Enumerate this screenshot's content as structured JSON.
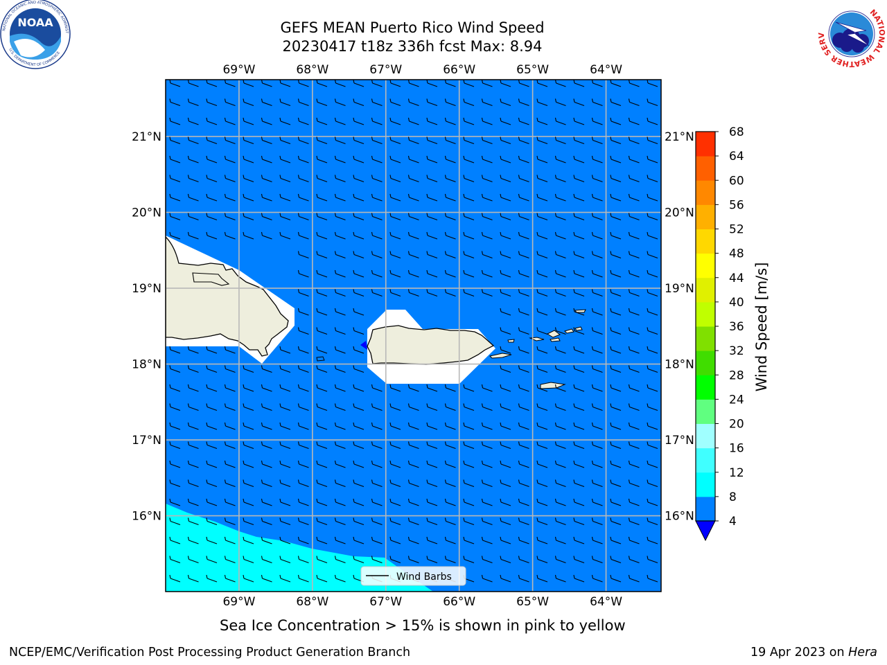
{
  "title": {
    "line1": "GEFS MEAN Puerto Rico Wind Speed",
    "line2": "20230417 t18z 336h fcst   Max: 8.94"
  },
  "logos": {
    "left": {
      "text": "NOAA",
      "ring_text": "NATIONAL OCEANIC AND ATMOSPHERIC ADMINISTRATION",
      "ring_text_bottom": "U.S. DEPARTMENT OF COMMERCE",
      "icon": "noaa-logo-icon"
    },
    "right": {
      "ring_text": "NATIONAL WEATHER SERVICE",
      "icon": "nws-logo-icon"
    }
  },
  "map": {
    "projection": "lat-lon",
    "lon_range": [
      -70.0,
      -63.25
    ],
    "lat_range": [
      15.0,
      21.75
    ],
    "lon_ticks": [
      -69,
      -68,
      -67,
      -66,
      -65,
      -64
    ],
    "lat_ticks": [
      16,
      17,
      18,
      19,
      20,
      21
    ],
    "lon_tick_labels": [
      "69°W",
      "68°W",
      "67°W",
      "66°W",
      "65°W",
      "64°W"
    ],
    "lat_tick_labels": [
      "16°N",
      "17°N",
      "18°N",
      "19°N",
      "20°N",
      "21°N"
    ],
    "grid": true,
    "ocean_color": "#0080ff",
    "low_speed_color": "#00ffff",
    "land_color": "#eeeedd",
    "regions": [
      "Hispaniola",
      "Puerto Rico",
      "Virgin Islands"
    ]
  },
  "legend": {
    "label": "Wind Barbs",
    "placement": "lower-center"
  },
  "colorbar": {
    "label": "Wind Speed [m/s]",
    "ticks": [
      "4",
      "8",
      "12",
      "16",
      "20",
      "24",
      "28",
      "32",
      "36",
      "40",
      "44",
      "48",
      "52",
      "56",
      "60",
      "64",
      "68"
    ],
    "extend": "min",
    "colors": [
      "#0080ff",
      "#00ffff",
      "#40ffff",
      "#a0ffff",
      "#60ff80",
      "#00ff00",
      "#40dd00",
      "#80e000",
      "#c0ff00",
      "#e0f000",
      "#ffff00",
      "#ffd800",
      "#ffb000",
      "#ff8800",
      "#ff6000",
      "#ff3000",
      "#ff0000"
    ],
    "under_color": "#0000ff"
  },
  "subtitle": "Sea Ice Concentration > 15% is shown in pink to yellow",
  "footer": {
    "left": "NCEP/EMC/Verification Post Processing Product Generation Branch",
    "right_date": "19 Apr 2023 on ",
    "right_host": "Hera"
  }
}
